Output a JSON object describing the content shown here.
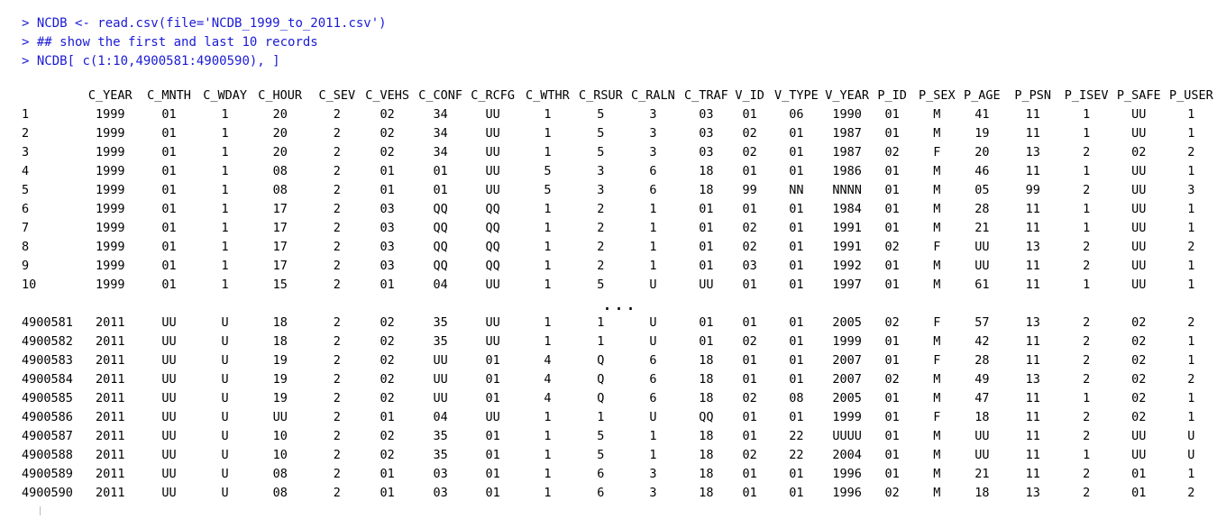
{
  "console": {
    "commands": [
      {
        "prompt": ">",
        "text": "NCDB <- read.csv(file='NCDB_1999_to_2011.csv')"
      },
      {
        "prompt": ">",
        "text": "## show the first and last 10 records"
      },
      {
        "prompt": ">",
        "text": "NCDB[ c(1:10,4900581:4900590), ]"
      }
    ],
    "ellipsis": "...",
    "columns": [
      "",
      "C_YEAR",
      "C_MNTH",
      "C_WDAY",
      "C_HOUR",
      "C_SEV",
      "C_VEHS",
      "C_CONF",
      "C_RCFG",
      "C_WTHR",
      "C_RSUR",
      "C_RALN",
      "C_TRAF",
      "V_ID",
      "V_TYPE",
      "V_YEAR",
      "P_ID",
      "P_SEX",
      "P_AGE",
      "P_PSN",
      "P_ISEV",
      "P_SAFE",
      "P_USER"
    ],
    "first_rows": [
      [
        "1",
        "1999",
        "01",
        "1",
        "20",
        "2",
        "02",
        "34",
        "UU",
        "1",
        "5",
        "3",
        "03",
        "01",
        "06",
        "1990",
        "01",
        "M",
        "41",
        "11",
        "1",
        "UU",
        "1"
      ],
      [
        "2",
        "1999",
        "01",
        "1",
        "20",
        "2",
        "02",
        "34",
        "UU",
        "1",
        "5",
        "3",
        "03",
        "02",
        "01",
        "1987",
        "01",
        "M",
        "19",
        "11",
        "1",
        "UU",
        "1"
      ],
      [
        "3",
        "1999",
        "01",
        "1",
        "20",
        "2",
        "02",
        "34",
        "UU",
        "1",
        "5",
        "3",
        "03",
        "02",
        "01",
        "1987",
        "02",
        "F",
        "20",
        "13",
        "2",
        "02",
        "2"
      ],
      [
        "4",
        "1999",
        "01",
        "1",
        "08",
        "2",
        "01",
        "01",
        "UU",
        "5",
        "3",
        "6",
        "18",
        "01",
        "01",
        "1986",
        "01",
        "M",
        "46",
        "11",
        "1",
        "UU",
        "1"
      ],
      [
        "5",
        "1999",
        "01",
        "1",
        "08",
        "2",
        "01",
        "01",
        "UU",
        "5",
        "3",
        "6",
        "18",
        "99",
        "NN",
        "NNNN",
        "01",
        "M",
        "05",
        "99",
        "2",
        "UU",
        "3"
      ],
      [
        "6",
        "1999",
        "01",
        "1",
        "17",
        "2",
        "03",
        "QQ",
        "QQ",
        "1",
        "2",
        "1",
        "01",
        "01",
        "01",
        "1984",
        "01",
        "M",
        "28",
        "11",
        "1",
        "UU",
        "1"
      ],
      [
        "7",
        "1999",
        "01",
        "1",
        "17",
        "2",
        "03",
        "QQ",
        "QQ",
        "1",
        "2",
        "1",
        "01",
        "02",
        "01",
        "1991",
        "01",
        "M",
        "21",
        "11",
        "1",
        "UU",
        "1"
      ],
      [
        "8",
        "1999",
        "01",
        "1",
        "17",
        "2",
        "03",
        "QQ",
        "QQ",
        "1",
        "2",
        "1",
        "01",
        "02",
        "01",
        "1991",
        "02",
        "F",
        "UU",
        "13",
        "2",
        "UU",
        "2"
      ],
      [
        "9",
        "1999",
        "01",
        "1",
        "17",
        "2",
        "03",
        "QQ",
        "QQ",
        "1",
        "2",
        "1",
        "01",
        "03",
        "01",
        "1992",
        "01",
        "M",
        "UU",
        "11",
        "2",
        "UU",
        "1"
      ],
      [
        "10",
        "1999",
        "01",
        "1",
        "15",
        "2",
        "01",
        "04",
        "UU",
        "1",
        "5",
        "U",
        "UU",
        "01",
        "01",
        "1997",
        "01",
        "M",
        "61",
        "11",
        "1",
        "UU",
        "1"
      ]
    ],
    "last_rows": [
      [
        "4900581",
        "2011",
        "UU",
        "U",
        "18",
        "2",
        "02",
        "35",
        "UU",
        "1",
        "1",
        "U",
        "01",
        "01",
        "01",
        "2005",
        "02",
        "F",
        "57",
        "13",
        "2",
        "02",
        "2"
      ],
      [
        "4900582",
        "2011",
        "UU",
        "U",
        "18",
        "2",
        "02",
        "35",
        "UU",
        "1",
        "1",
        "U",
        "01",
        "02",
        "01",
        "1999",
        "01",
        "M",
        "42",
        "11",
        "2",
        "02",
        "1"
      ],
      [
        "4900583",
        "2011",
        "UU",
        "U",
        "19",
        "2",
        "02",
        "UU",
        "01",
        "4",
        "Q",
        "6",
        "18",
        "01",
        "01",
        "2007",
        "01",
        "F",
        "28",
        "11",
        "2",
        "02",
        "1"
      ],
      [
        "4900584",
        "2011",
        "UU",
        "U",
        "19",
        "2",
        "02",
        "UU",
        "01",
        "4",
        "Q",
        "6",
        "18",
        "01",
        "01",
        "2007",
        "02",
        "M",
        "49",
        "13",
        "2",
        "02",
        "2"
      ],
      [
        "4900585",
        "2011",
        "UU",
        "U",
        "19",
        "2",
        "02",
        "UU",
        "01",
        "4",
        "Q",
        "6",
        "18",
        "02",
        "08",
        "2005",
        "01",
        "M",
        "47",
        "11",
        "1",
        "02",
        "1"
      ],
      [
        "4900586",
        "2011",
        "UU",
        "U",
        "UU",
        "2",
        "01",
        "04",
        "UU",
        "1",
        "1",
        "U",
        "QQ",
        "01",
        "01",
        "1999",
        "01",
        "F",
        "18",
        "11",
        "2",
        "02",
        "1"
      ],
      [
        "4900587",
        "2011",
        "UU",
        "U",
        "10",
        "2",
        "02",
        "35",
        "01",
        "1",
        "5",
        "1",
        "18",
        "01",
        "22",
        "UUUU",
        "01",
        "M",
        "UU",
        "11",
        "2",
        "UU",
        "U"
      ],
      [
        "4900588",
        "2011",
        "UU",
        "U",
        "10",
        "2",
        "02",
        "35",
        "01",
        "1",
        "5",
        "1",
        "18",
        "02",
        "22",
        "2004",
        "01",
        "M",
        "UU",
        "11",
        "1",
        "UU",
        "U"
      ],
      [
        "4900589",
        "2011",
        "UU",
        "U",
        "08",
        "2",
        "01",
        "03",
        "01",
        "1",
        "6",
        "3",
        "18",
        "01",
        "01",
        "1996",
        "01",
        "M",
        "21",
        "11",
        "2",
        "01",
        "1"
      ],
      [
        "4900590",
        "2011",
        "UU",
        "U",
        "08",
        "2",
        "01",
        "03",
        "01",
        "1",
        "6",
        "3",
        "18",
        "01",
        "01",
        "1996",
        "02",
        "M",
        "18",
        "13",
        "2",
        "01",
        "2"
      ]
    ]
  }
}
